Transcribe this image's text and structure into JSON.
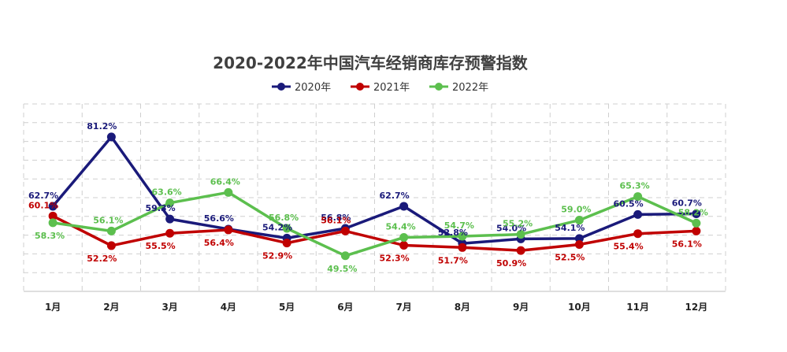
{
  "chart_data": {
    "type": "line",
    "title": "2020-2022年中国汽车经销商库存预警指数",
    "categories": [
      "1月",
      "2月",
      "3月",
      "4月",
      "5月",
      "6月",
      "7月",
      "8月",
      "9月",
      "10月",
      "11月",
      "12月"
    ],
    "series": [
      {
        "name": "2020年",
        "color": "#1a1a7a",
        "values": [
          62.7,
          81.2,
          59.3,
          56.6,
          54.2,
          56.8,
          62.7,
          52.8,
          54.0,
          54.1,
          60.5,
          60.7
        ],
        "labels": [
          "62.7%",
          "81.2%",
          "59.3%",
          "56.6%",
          "54.2%",
          "56.8%",
          "62.7%",
          "52.8%",
          "54.0%",
          "54.1%",
          "60.5%",
          "60.7%"
        ]
      },
      {
        "name": "2021年",
        "color": "#c00000",
        "values": [
          60.1,
          52.2,
          55.5,
          56.4,
          52.9,
          56.1,
          52.3,
          51.7,
          50.9,
          52.5,
          55.4,
          56.1
        ],
        "labels": [
          "60.1%",
          "52.2%",
          "55.5%",
          "56.4%",
          "52.9%",
          "56.1%",
          "52.3%",
          "51.7%",
          "50.9%",
          "52.5%",
          "55.4%",
          "56.1%"
        ]
      },
      {
        "name": "2022年",
        "color": "#5cbf4e",
        "values": [
          58.3,
          56.1,
          63.6,
          66.4,
          56.8,
          49.5,
          54.4,
          54.7,
          55.2,
          59.0,
          65.3,
          58.2
        ],
        "labels": [
          "58.3%",
          "56.1%",
          "63.6%",
          "66.4%",
          "56.8%",
          "49.5%",
          "54.4%",
          "54.7%",
          "55.2%",
          "59.0%",
          "65.3%",
          "58.2%"
        ]
      }
    ],
    "ylim": [
      0,
      100
    ],
    "grid": true,
    "legend": "top-center",
    "xlabel": "",
    "ylabel": ""
  }
}
